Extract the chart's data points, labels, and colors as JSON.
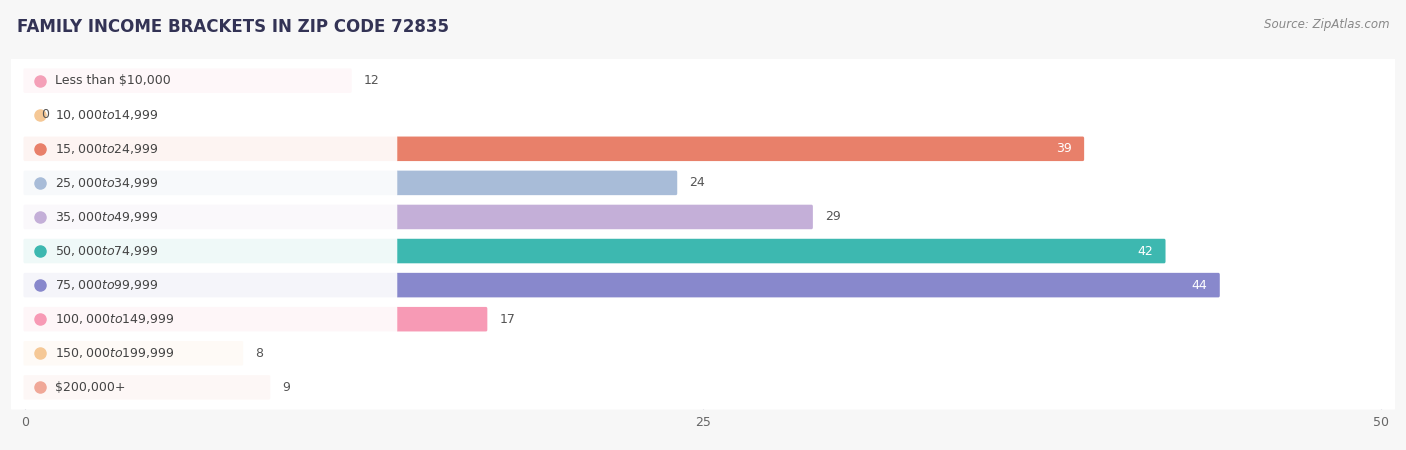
{
  "title": "FAMILY INCOME BRACKETS IN ZIP CODE 72835",
  "source": "Source: ZipAtlas.com",
  "categories": [
    "Less than $10,000",
    "$10,000 to $14,999",
    "$15,000 to $24,999",
    "$25,000 to $34,999",
    "$35,000 to $49,999",
    "$50,000 to $74,999",
    "$75,000 to $99,999",
    "$100,000 to $149,999",
    "$150,000 to $199,999",
    "$200,000+"
  ],
  "values": [
    12,
    0,
    39,
    24,
    29,
    42,
    44,
    17,
    8,
    9
  ],
  "bar_colors": [
    "#f4a0b8",
    "#f5c896",
    "#e8806a",
    "#a8bcd8",
    "#c4afd8",
    "#3db8b0",
    "#8888cc",
    "#f79ab5",
    "#f5c896",
    "#f0a898"
  ],
  "value_label_colors": [
    "#555555",
    "#555555",
    "#ffffff",
    "#555555",
    "#555555",
    "#ffffff",
    "#ffffff",
    "#555555",
    "#555555",
    "#555555"
  ],
  "inside_threshold": 35,
  "xlim": [
    0,
    50
  ],
  "xticks": [
    0,
    25,
    50
  ],
  "row_bg_color": "#f0f0f2",
  "row_bg_color_alt": "#e8e8ec",
  "background_color": "#f7f7f7",
  "title_fontsize": 12,
  "source_fontsize": 8.5,
  "label_fontsize": 9,
  "value_fontsize": 9
}
